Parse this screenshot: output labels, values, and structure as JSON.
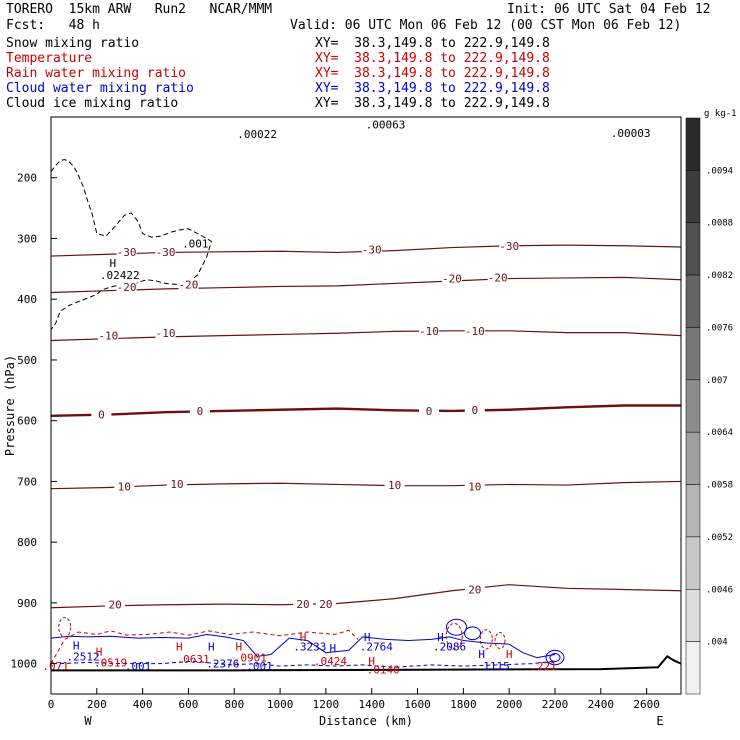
{
  "header": {
    "model": "TORERO  15km ARW   Run2   NCAR/MMM",
    "init": "Init: 06 UTC Sat 04 Feb 12",
    "fcst": "Fcst:   48 h",
    "valid": "Valid: 06 UTC Mon 06 Feb 12 (00 CST Mon 06 Feb 12)"
  },
  "fields": [
    {
      "name": "Snow mixing ratio",
      "xy": "XY=  38.3,149.8 to 222.9,149.8",
      "color": "#000000"
    },
    {
      "name": "Temperature",
      "xy": "XY=  38.3,149.8 to 222.9,149.8",
      "color": "#cc0000"
    },
    {
      "name": "Rain water mixing ratio",
      "xy": "XY=  38.3,149.8 to 222.9,149.8",
      "color": "#cc0000"
    },
    {
      "name": "Cloud water mixing ratio",
      "xy": "XY=  38.3,149.8 to 222.9,149.8",
      "color": "#0000cc"
    },
    {
      "name": "Cloud ice mixing ratio",
      "xy": "XY=  38.3,149.8 to 222.9,149.8",
      "color": "#000000"
    }
  ],
  "chart_data": {
    "type": "cross-section contour",
    "xlabel": "Distance (km)",
    "ylabel": "Pressure (hPa)",
    "xlim": [
      0,
      2750
    ],
    "ylim": [
      1050,
      100
    ],
    "x_ticks": [
      0,
      200,
      400,
      600,
      800,
      1000,
      1200,
      1400,
      1600,
      1800,
      2000,
      2200,
      2400,
      2600
    ],
    "y_ticks": [
      200,
      300,
      400,
      500,
      600,
      700,
      800,
      900,
      1000
    ],
    "x_end_labels": [
      "W",
      "E"
    ],
    "temperature_contours": [
      {
        "level": -30,
        "pressure_hPa": [
          329,
          326,
          323,
          322,
          321,
          323,
          320,
          315,
          312,
          311,
          312,
          314
        ]
      },
      {
        "level": -20,
        "pressure_hPa": [
          389,
          386,
          383,
          381,
          379,
          378,
          374,
          370,
          366,
          365,
          364,
          368
        ]
      },
      {
        "level": -10,
        "pressure_hPa": [
          468,
          465,
          462,
          460,
          458,
          456,
          453,
          452,
          452,
          455,
          455,
          460
        ]
      },
      {
        "level": 0,
        "pressure_hPa": [
          592,
          590,
          586,
          584,
          582,
          580,
          583,
          584,
          582,
          578,
          575,
          575
        ]
      },
      {
        "level": 10,
        "pressure_hPa": [
          712,
          710,
          706,
          704,
          703,
          705,
          707,
          707,
          705,
          706,
          702,
          700
        ]
      },
      {
        "level": 20,
        "pressure_hPa": [
          908,
          905,
          903,
          902,
          903,
          901,
          893,
          880,
          870,
          876,
          878,
          880
        ]
      }
    ],
    "contour_x_km": [
      0,
      250,
      500,
      750,
      1000,
      1250,
      1500,
      1750,
      2000,
      2250,
      2500,
      2750
    ],
    "contour_labels": [
      {
        "text": "-30",
        "x": 330,
        "p": 322
      },
      {
        "text": "-30",
        "x": 500,
        "p": 322
      },
      {
        "text": "-30",
        "x": 1400,
        "p": 318
      },
      {
        "text": "-30",
        "x": 2000,
        "p": 312
      },
      {
        "text": "-20",
        "x": 330,
        "p": 380
      },
      {
        "text": "-20",
        "x": 600,
        "p": 376
      },
      {
        "text": "-20",
        "x": 1750,
        "p": 366
      },
      {
        "text": "-20",
        "x": 1950,
        "p": 364
      },
      {
        "text": "-10",
        "x": 250,
        "p": 460
      },
      {
        "text": "-10",
        "x": 500,
        "p": 456
      },
      {
        "text": "-10",
        "x": 1650,
        "p": 452
      },
      {
        "text": "-10",
        "x": 1850,
        "p": 452
      },
      {
        "text": "0",
        "x": 220,
        "p": 590
      },
      {
        "text": "0",
        "x": 650,
        "p": 584
      },
      {
        "text": "0",
        "x": 1650,
        "p": 584
      },
      {
        "text": "0",
        "x": 1850,
        "p": 582
      },
      {
        "text": "10",
        "x": 320,
        "p": 708
      },
      {
        "text": "10",
        "x": 550,
        "p": 704
      },
      {
        "text": "10",
        "x": 1500,
        "p": 706
      },
      {
        "text": "10",
        "x": 1850,
        "p": 708
      },
      {
        "text": "20",
        "x": 280,
        "p": 903
      },
      {
        "text": "20",
        "x": 1100,
        "p": 902
      },
      {
        "text": "20",
        "x": 1200,
        "p": 902
      },
      {
        "text": "20",
        "x": 1850,
        "p": 878
      }
    ],
    "snow_ice_contour_x_km": [
      0,
      20,
      40,
      60,
      80,
      100,
      120,
      140,
      160,
      180,
      200,
      240,
      280,
      320,
      350,
      380,
      400,
      440,
      480,
      520,
      560,
      600,
      640,
      680,
      700,
      680,
      640,
      600,
      560,
      500,
      460,
      420,
      380,
      350,
      320,
      300,
      280,
      260,
      220,
      200,
      160,
      120,
      80,
      40,
      20,
      0
    ],
    "snow_ice_contour_p_hPa": [
      190,
      180,
      172,
      170,
      174,
      182,
      196,
      214,
      238,
      260,
      292,
      296,
      280,
      262,
      258,
      272,
      292,
      298,
      296,
      290,
      286,
      284,
      292,
      300,
      305,
      330,
      360,
      372,
      376,
      374,
      370,
      368,
      372,
      380,
      384,
      380,
      378,
      380,
      385,
      392,
      398,
      404,
      410,
      420,
      440,
      450
    ],
    "hydrometeor_labels": [
      {
        "text": "H",
        "x": 270,
        "p": 340,
        "color": "#000000"
      },
      {
        "text": ".02422",
        "x": 300,
        "p": 360,
        "color": "#000000"
      },
      {
        "text": ".001",
        "x": 630,
        "p": 308,
        "color": "#000000"
      },
      {
        "text": ".00022",
        "x": 900,
        "p": 128,
        "color": "#000000"
      },
      {
        "text": ".00063",
        "x": 1460,
        "p": 112,
        "color": "#000000"
      },
      {
        "text": ".00003",
        "x": 2530,
        "p": 126,
        "color": "#000000"
      },
      {
        "text": "H",
        "x": 110,
        "p": 970,
        "color": "#0000cc"
      },
      {
        "text": ".2512",
        "x": 140,
        "p": 988,
        "color": "#0000cc"
      },
      {
        "text": "H",
        "x": 210,
        "p": 980,
        "color": "#cc0000"
      },
      {
        "text": ".0519",
        "x": 260,
        "p": 998,
        "color": "#cc0000"
      },
      {
        "text": ".001",
        "x": 380,
        "p": 1004,
        "color": "#0000cc"
      },
      {
        "text": "H",
        "x": 560,
        "p": 972,
        "color": "#cc0000"
      },
      {
        "text": ".0631",
        "x": 620,
        "p": 992,
        "color": "#cc0000"
      },
      {
        "text": "H",
        "x": 700,
        "p": 972,
        "color": "#0000cc"
      },
      {
        "text": ".2376",
        "x": 750,
        "p": 1000,
        "color": "#0000cc"
      },
      {
        "text": "H",
        "x": 820,
        "p": 972,
        "color": "#cc0000"
      },
      {
        "text": ".0901",
        "x": 870,
        "p": 990,
        "color": "#cc0000"
      },
      {
        "text": ".001",
        "x": 910,
        "p": 1004,
        "color": "#0000cc"
      },
      {
        "text": "H",
        "x": 1100,
        "p": 956,
        "color": "#cc0000"
      },
      {
        "text": ".3233",
        "x": 1130,
        "p": 972,
        "color": "#0000cc"
      },
      {
        "text": ".0424",
        "x": 1220,
        "p": 996,
        "color": "#cc0000"
      },
      {
        "text": "H",
        "x": 1230,
        "p": 974,
        "color": "#0000cc"
      },
      {
        "text": "H",
        "x": 1380,
        "p": 956,
        "color": "#0000cc"
      },
      {
        "text": ".2764",
        "x": 1420,
        "p": 972,
        "color": "#0000cc"
      },
      {
        "text": "H",
        "x": 1400,
        "p": 996,
        "color": "#cc0000"
      },
      {
        "text": ".0140",
        "x": 1450,
        "p": 1010,
        "color": "#cc0000"
      },
      {
        "text": "H",
        "x": 1700,
        "p": 956,
        "color": "#0000cc"
      },
      {
        "text": ".2086",
        "x": 1740,
        "p": 972,
        "color": "#0000cc"
      },
      {
        "text": "H",
        "x": 1880,
        "p": 984,
        "color": "#0000cc"
      },
      {
        "text": ".1115",
        "x": 1930,
        "p": 1004,
        "color": "#0000cc"
      },
      {
        "text": "H",
        "x": 2000,
        "p": 984,
        "color": "#cc0000"
      },
      {
        "text": ".221",
        "x": 2150,
        "p": 1004,
        "color": "#cc0000"
      },
      {
        "text": ".071",
        "x": 20,
        "p": 1004,
        "color": "#cc0000"
      }
    ],
    "colorbar": {
      "unit": "g kg-1",
      "ticks": [
        ".0094",
        ".0088",
        ".0082",
        ".0076",
        ".007",
        ".0064",
        ".0058",
        ".0052",
        ".0046",
        ".004"
      ],
      "shade_colors": [
        "#2a2a2a",
        "#3c3c3c",
        "#505050",
        "#646464",
        "#787878",
        "#8c8c8c",
        "#a0a0a0",
        "#b4b4b4",
        "#c8c8c8",
        "#dcdcdc",
        "#f0f0f0"
      ]
    }
  }
}
